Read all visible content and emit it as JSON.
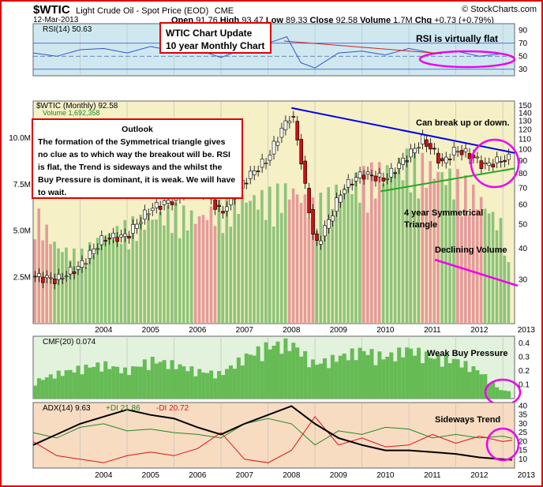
{
  "header": {
    "symbol": "$WTIC",
    "name": "Light Crude Oil - Spot Price (EOD)",
    "exchange": "CME",
    "credit": "© StockCharts.com",
    "date": "12-Mar-2013",
    "ohlc": {
      "open_label": "Open",
      "open": "91.76",
      "high_label": "High",
      "high": "93.47",
      "low_label": "Low",
      "low": "89.33",
      "close_label": "Close",
      "close": "92.58",
      "volume_label": "Volume",
      "volume": "1.7M",
      "chg_label": "Chg",
      "chg": "+0.73 (+0.79%)"
    }
  },
  "annotations": {
    "update_title": "WTIC Chart Update",
    "update_subtitle": "10 year Monthly Chart",
    "outlook_title": "Outlook",
    "outlook_body": "The formation of the Symmetrical triangle gives no clue as to which way the breakout will be. RSI is flat, the Trend is sideways and the whilst the Buy Pressure is dominant, it is weak. We will have to wait.",
    "rsi_flat": "RSI is virtually flat",
    "break": "Can break up or down.",
    "triangle": "4 year Symmetrical\nTriangle",
    "declining_volume": "Declining Volume",
    "weak_buy": "Weak Buy Pressure",
    "sideways": "Sideways Trend"
  },
  "colors": {
    "frame": "#e00000",
    "panel_bg": "#ffffff",
    "rsi_bg": "#cfe8f0",
    "price_bg": "#f5f0c6",
    "cmf_bg": "#e2f2dc",
    "adx_bg": "#f7dcc2",
    "rsi_line": "#3355cc",
    "up_candle": "#ffffff",
    "down_candle": "#cc1111",
    "volume_up": "#8dc47a",
    "volume_down": "#e69a9a",
    "cmf_fill": "#66bb55",
    "adx_line": "#000000",
    "plus_di": "#228822",
    "minus_di": "#dd1111",
    "trend_down": "#0000ee",
    "trend_up": "#22aa22",
    "highlight": "#ee00ee"
  },
  "chart_data": [
    {
      "type": "line",
      "panel": "rsi",
      "title": "RSI(14) 50.63",
      "ylim": [
        20,
        100
      ],
      "ticks": [
        30,
        50,
        70,
        90
      ],
      "reference_lines": [
        30,
        50,
        70
      ],
      "x": [
        2003.0,
        2003.5,
        2004.0,
        2004.5,
        2005.0,
        2005.5,
        2006.0,
        2006.5,
        2007.0,
        2007.5,
        2008.0,
        2008.4,
        2008.7,
        2009.0,
        2009.5,
        2010.0,
        2010.5,
        2011.0,
        2011.5,
        2012.0,
        2012.5,
        2013.0,
        2013.2
      ],
      "values": [
        55,
        50,
        60,
        62,
        55,
        65,
        58,
        60,
        48,
        62,
        70,
        80,
        40,
        32,
        55,
        58,
        52,
        62,
        55,
        58,
        50,
        54,
        50.63
      ]
    },
    {
      "type": "candlestick",
      "panel": "price",
      "title": "$WTIC (Monthly) 92.58",
      "ylim": [
        20,
        150
      ],
      "scale": "log",
      "ticks": [
        30,
        40,
        50,
        60,
        70,
        80,
        90,
        100,
        110,
        120,
        130,
        140,
        150
      ],
      "xticks": [
        "2004",
        "2005",
        "2006",
        "2007",
        "2008",
        "2009",
        "2010",
        "2011",
        "2012",
        "2013"
      ],
      "x": [
        2003.0,
        2003.5,
        2004.0,
        2004.5,
        2005.0,
        2005.5,
        2006.0,
        2006.5,
        2007.0,
        2007.5,
        2008.0,
        2008.5,
        2008.8,
        2009.0,
        2009.3,
        2009.6,
        2010.0,
        2010.5,
        2011.0,
        2011.3,
        2011.7,
        2012.0,
        2012.3,
        2012.6,
        2012.9,
        2013.2
      ],
      "close": [
        31,
        30,
        34,
        44,
        45,
        58,
        63,
        74,
        55,
        75,
        92,
        140,
        68,
        40,
        52,
        70,
        80,
        76,
        95,
        110,
        88,
        100,
        95,
        86,
        90,
        92.58
      ],
      "trendlines": [
        {
          "from": [
            2008.5,
            147
          ],
          "to": [
            2013.25,
            97
          ]
        },
        {
          "from": [
            2010.4,
            68
          ],
          "to": [
            2013.25,
            84
          ]
        }
      ]
    },
    {
      "type": "bar",
      "panel": "volume",
      "title": "Volume 1,692,358",
      "ticks": [
        "2.5M",
        "5.0M",
        "7.5M",
        "10.0M"
      ],
      "ylim": [
        0,
        12
      ],
      "x": [
        2003.0,
        2003.5,
        2004.0,
        2004.5,
        2005.0,
        2005.5,
        2006.0,
        2006.5,
        2007.0,
        2007.5,
        2008.0,
        2008.5,
        2009.0,
        2009.5,
        2010.0,
        2010.5,
        2011.0,
        2011.5,
        2012.0,
        2012.5,
        2013.0,
        2013.2
      ],
      "values": [
        6,
        4,
        3.5,
        4.5,
        5,
        5.5,
        5.8,
        5.5,
        6,
        6.5,
        6.5,
        7,
        6,
        7,
        7.5,
        8,
        8.5,
        8,
        7.5,
        6.5,
        5,
        1.7
      ]
    },
    {
      "type": "area",
      "panel": "cmf",
      "title": "CMF(20) 0.074",
      "ylim": [
        0,
        0.45
      ],
      "ticks": [
        0.1,
        0.2,
        0.3,
        0.4
      ],
      "x": [
        2003.0,
        2003.5,
        2004.0,
        2004.5,
        2005.0,
        2005.5,
        2006.0,
        2006.5,
        2007.0,
        2007.5,
        2008.0,
        2008.5,
        2009.0,
        2009.5,
        2010.0,
        2010.5,
        2011.0,
        2011.5,
        2012.0,
        2012.5,
        2013.0,
        2013.2
      ],
      "values": [
        0.12,
        0.18,
        0.22,
        0.25,
        0.2,
        0.28,
        0.25,
        0.2,
        0.18,
        0.3,
        0.38,
        0.4,
        0.25,
        0.3,
        0.35,
        0.3,
        0.36,
        0.3,
        0.28,
        0.2,
        0.05,
        0.074
      ]
    },
    {
      "type": "line",
      "panel": "adx",
      "title": "ADX(14) 9.63 +DI 21.86 -DI 20.72",
      "ylim": [
        5,
        42
      ],
      "ticks": [
        10,
        15,
        20,
        25,
        30,
        35,
        40
      ],
      "xticks": [
        "2004",
        "2005",
        "2006",
        "2007",
        "2008",
        "2009",
        "2010",
        "2011",
        "2012",
        "2013"
      ],
      "x": [
        2003.0,
        2003.5,
        2004.0,
        2004.5,
        2005.0,
        2005.5,
        2006.0,
        2006.5,
        2007.0,
        2007.5,
        2008.0,
        2008.5,
        2009.0,
        2009.5,
        2010.0,
        2010.5,
        2011.0,
        2011.5,
        2012.0,
        2012.5,
        2013.0,
        2013.2
      ],
      "series": [
        {
          "name": "ADX(14) 9.63",
          "values": [
            18,
            24,
            30,
            34,
            38,
            35,
            33,
            28,
            24,
            30,
            35,
            40,
            30,
            22,
            18,
            15,
            15,
            14,
            13,
            11,
            10,
            9.63
          ]
        },
        {
          "name": "+DI 21.86",
          "values": [
            25,
            22,
            28,
            30,
            26,
            27,
            25,
            24,
            22,
            30,
            33,
            30,
            18,
            26,
            24,
            28,
            27,
            22,
            24,
            22,
            23,
            21.86
          ]
        },
        {
          "name": "-DI 20.72",
          "values": [
            20,
            12,
            10,
            8,
            12,
            14,
            12,
            16,
            25,
            10,
            8,
            15,
            34,
            18,
            22,
            17,
            18,
            24,
            19,
            23,
            20,
            20.72
          ]
        }
      ]
    }
  ]
}
